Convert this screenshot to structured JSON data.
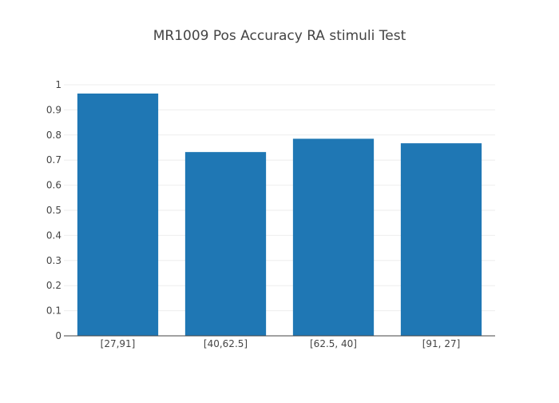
{
  "chart_data": {
    "type": "bar",
    "title": "MR1009 Pos Accuracy RA stimuli Test",
    "xlabel": "",
    "ylabel": "",
    "categories": [
      "[27,91]",
      "[40,62.5]",
      "[62.5, 40]",
      "[91, 27]"
    ],
    "values": [
      0.965,
      0.732,
      0.785,
      0.767
    ],
    "ylim": [
      0,
      1
    ],
    "yticks": [
      "0",
      "0.1",
      "0.2",
      "0.3",
      "0.4",
      "0.5",
      "0.6",
      "0.7",
      "0.8",
      "0.9",
      "1"
    ],
    "grid": true,
    "legend": "none",
    "colors": {
      "bar": "#1f77b4",
      "grid": "#eeeeee",
      "axis": "#444444",
      "text": "#444444"
    }
  }
}
